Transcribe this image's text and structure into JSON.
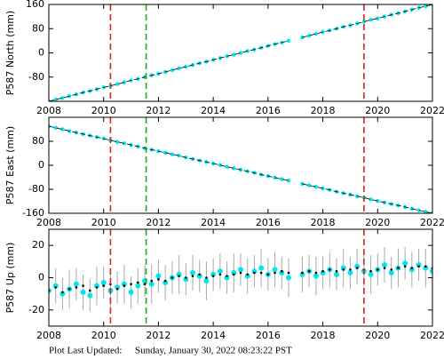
{
  "chart_data": [
    {
      "type": "scatter",
      "ylabel": "P587 North (mm)",
      "xlim": [
        2008,
        2022
      ],
      "xticks": [
        2008,
        2010,
        2012,
        2014,
        2016,
        2018,
        2020,
        2022
      ],
      "ylim": [
        -160,
        160
      ],
      "yticks": [
        -80,
        0,
        80,
        160
      ],
      "events": [
        {
          "x": 2010.25,
          "color": "#dd2222"
        },
        {
          "x": 2011.55,
          "color": "#22aa22"
        },
        {
          "x": 2019.5,
          "color": "#dd2222"
        }
      ],
      "x": [
        2008,
        2008.25,
        2008.5,
        2008.75,
        2009,
        2009.25,
        2009.5,
        2009.75,
        2010,
        2010.25,
        2010.5,
        2010.75,
        2011,
        2011.25,
        2011.5,
        2011.75,
        2012,
        2012.25,
        2012.5,
        2012.75,
        2013,
        2013.25,
        2013.5,
        2013.75,
        2014,
        2014.25,
        2014.5,
        2014.75,
        2015,
        2015.25,
        2015.5,
        2015.75,
        2016,
        2016.25,
        2016.5,
        2016.75,
        2017,
        2017.25,
        2017.5,
        2017.75,
        2018,
        2018.25,
        2018.5,
        2018.75,
        2019,
        2019.25,
        2019.5,
        2019.75,
        2020,
        2020.25,
        2020.5,
        2020.75,
        2021,
        2021.25,
        2021.5,
        2021.75,
        2022
      ],
      "series": [
        {
          "color": "#00e5ee",
          "values": [
            -160,
            -154,
            -149,
            -143,
            -137,
            -131,
            -126,
            -120,
            -114,
            -109,
            -103,
            -97,
            -91,
            -86,
            -80,
            -74,
            -69,
            -63,
            -57,
            -51,
            -46,
            -40,
            -34,
            -29,
            -23,
            -17,
            -11,
            -6,
            0,
            6,
            11,
            17,
            23,
            29,
            34,
            40,
            null,
            51,
            57,
            63,
            69,
            74,
            80,
            86,
            91,
            97,
            103,
            109,
            114,
            120,
            126,
            131,
            137,
            143,
            149,
            154,
            160
          ]
        }
      ]
    },
    {
      "type": "scatter",
      "ylabel": "P587 East (mm)",
      "xlim": [
        2008,
        2022
      ],
      "xticks": [
        2008,
        2010,
        2012,
        2014,
        2016,
        2018,
        2020,
        2022
      ],
      "ylim": [
        -160,
        160
      ],
      "yticks": [
        -160,
        -80,
        0,
        80
      ],
      "events": [
        {
          "x": 2010.25,
          "color": "#dd2222"
        },
        {
          "x": 2011.55,
          "color": "#22aa22"
        },
        {
          "x": 2019.5,
          "color": "#dd2222"
        }
      ],
      "x": [
        2008,
        2008.25,
        2008.5,
        2008.75,
        2009,
        2009.25,
        2009.5,
        2009.75,
        2010,
        2010.25,
        2010.5,
        2010.75,
        2011,
        2011.25,
        2011.5,
        2011.75,
        2012,
        2012.25,
        2012.5,
        2012.75,
        2013,
        2013.25,
        2013.5,
        2013.75,
        2014,
        2014.25,
        2014.5,
        2014.75,
        2015,
        2015.25,
        2015.5,
        2015.75,
        2016,
        2016.25,
        2016.5,
        2016.75,
        2017,
        2017.25,
        2017.5,
        2017.75,
        2018,
        2018.25,
        2018.5,
        2018.75,
        2019,
        2019.25,
        2019.5,
        2019.75,
        2020,
        2020.25,
        2020.5,
        2020.75,
        2021,
        2021.25,
        2021.5,
        2021.75,
        2022
      ],
      "series": [
        {
          "color": "#00e5ee",
          "values": [
            130,
            125,
            120,
            114,
            109,
            104,
            99,
            94,
            89,
            83,
            78,
            73,
            68,
            63,
            57,
            52,
            47,
            42,
            37,
            32,
            26,
            21,
            16,
            11,
            6,
            1,
            -5,
            -10,
            -15,
            -20,
            -25,
            -31,
            -36,
            -41,
            -46,
            -51,
            null,
            -62,
            -67,
            -72,
            -77,
            -82,
            -88,
            -93,
            -98,
            -103,
            -108,
            -114,
            -119,
            -124,
            -129,
            -134,
            -139,
            -145,
            -150,
            -155,
            -160
          ]
        }
      ]
    },
    {
      "type": "errorbar",
      "ylabel": "P587 Up (mm)",
      "xlim": [
        2008,
        2022
      ],
      "xticks": [
        2008,
        2010,
        2012,
        2014,
        2016,
        2018,
        2020,
        2022
      ],
      "ylim": [
        -30,
        30
      ],
      "yticks": [
        -20,
        0,
        20
      ],
      "events": [
        {
          "x": 2010.25,
          "color": "#dd2222"
        },
        {
          "x": 2011.55,
          "color": "#22aa22"
        },
        {
          "x": 2019.5,
          "color": "#dd2222"
        }
      ],
      "x": [
        2008,
        2008.25,
        2008.5,
        2008.75,
        2009,
        2009.25,
        2009.5,
        2009.75,
        2010,
        2010.25,
        2010.5,
        2010.75,
        2011,
        2011.25,
        2011.5,
        2011.75,
        2012,
        2012.25,
        2012.5,
        2012.75,
        2013,
        2013.25,
        2013.5,
        2013.75,
        2014,
        2014.25,
        2014.5,
        2014.75,
        2015,
        2015.25,
        2015.5,
        2015.75,
        2016,
        2016.25,
        2016.5,
        2016.75,
        2017,
        2017.25,
        2017.5,
        2017.75,
        2018,
        2018.25,
        2018.5,
        2018.75,
        2019,
        2019.25,
        2019.5,
        2019.75,
        2020,
        2020.25,
        2020.5,
        2020.75,
        2021,
        2021.25,
        2021.5,
        2021.75,
        2022
      ],
      "series": [
        {
          "color": "#00e5ee",
          "error_color": "#aaaaaa",
          "values": [
            -8,
            -5,
            -10,
            -7,
            -4,
            -9,
            -11,
            -5,
            -3,
            -8,
            -6,
            -4,
            -9,
            -5,
            -2,
            -4,
            1,
            -3,
            0,
            2,
            -1,
            3,
            1,
            -2,
            2,
            4,
            0,
            3,
            5,
            1,
            4,
            6,
            2,
            5,
            3,
            0,
            null,
            2,
            4,
            1,
            3,
            5,
            2,
            6,
            3,
            7,
            4,
            2,
            5,
            8,
            3,
            6,
            9,
            5,
            8,
            6,
            4
          ],
          "errors": [
            10,
            11,
            10,
            12,
            10,
            11,
            10,
            12,
            10,
            11,
            10,
            12,
            10,
            11,
            10,
            12,
            10,
            11,
            10,
            12,
            10,
            11,
            10,
            12,
            10,
            11,
            10,
            12,
            10,
            11,
            10,
            12,
            10,
            11,
            10,
            12,
            null,
            11,
            10,
            12,
            10,
            11,
            10,
            12,
            10,
            11,
            10,
            12,
            10,
            11,
            10,
            12,
            10,
            11,
            10,
            12,
            10
          ]
        },
        {
          "color": "#000000",
          "style": "dotted",
          "values": [
            -8,
            -6,
            -9,
            -7,
            -6,
            -5,
            -8,
            -6,
            -5,
            -4,
            -7,
            -5,
            -4,
            -3,
            -4,
            -2,
            -1,
            -2,
            0,
            1,
            0,
            1,
            2,
            0,
            1,
            2,
            1,
            2,
            3,
            2,
            3,
            3,
            2,
            3,
            4,
            3,
            null,
            3,
            4,
            3,
            4,
            5,
            4,
            5,
            5,
            6,
            5,
            4,
            5,
            6,
            5,
            6,
            7,
            6,
            7,
            7,
            6
          ]
        }
      ]
    }
  ],
  "footer": {
    "label": "Plot Last Updated:",
    "timestamp": "Sunday, January 30, 2022 08:23:22 PST"
  }
}
